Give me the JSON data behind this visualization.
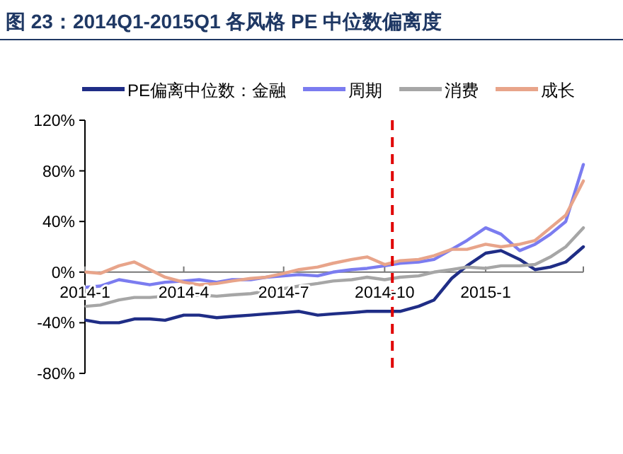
{
  "chart_data": {
    "type": "line",
    "title": "图 23：2014Q1-2015Q1 各风格 PE 中位数偏离度",
    "x": [
      "2014-01-02",
      "2014-01-15",
      "2014-02-01",
      "2014-02-15",
      "2014-03-01",
      "2014-03-15",
      "2014-04-01",
      "2014-04-15",
      "2014-05-01",
      "2014-05-15",
      "2014-06-01",
      "2014-06-15",
      "2014-07-01",
      "2014-07-15",
      "2014-08-01",
      "2014-08-15",
      "2014-09-01",
      "2014-09-15",
      "2014-10-01",
      "2014-10-15",
      "2014-11-01",
      "2014-11-15",
      "2014-12-01",
      "2014-12-15",
      "2015-01-01",
      "2015-01-15",
      "2015-02-01",
      "2015-02-15",
      "2015-03-01",
      "2015-03-15",
      "2015-03-31"
    ],
    "series": [
      {
        "name": "PE偏离中位数：金融",
        "color": "#1f2d86",
        "values": [
          -38,
          -40,
          -40,
          -37,
          -37,
          -38,
          -34,
          -34,
          -36,
          -35,
          -34,
          -33,
          -32,
          -31,
          -34,
          -33,
          -32,
          -31,
          -31,
          -31,
          -27,
          -22,
          -5,
          5,
          15,
          17,
          10,
          2,
          4,
          8,
          20
        ]
      },
      {
        "name": "周期",
        "color": "#7b7cf0",
        "values": [
          -12,
          -11,
          -6,
          -8,
          -10,
          -8,
          -7,
          -6,
          -8,
          -6,
          -6,
          -4,
          -3,
          -2,
          -3,
          0,
          2,
          3,
          5,
          7,
          8,
          10,
          18,
          25,
          35,
          30,
          17,
          22,
          30,
          40,
          85
        ]
      },
      {
        "name": "消费",
        "color": "#a6a6a6",
        "values": [
          -27,
          -26,
          -22,
          -20,
          -20,
          -19,
          -19,
          -18,
          -19,
          -18,
          -17,
          -15,
          -13,
          -11,
          -9,
          -7,
          -6,
          -4,
          -6,
          -4,
          -3,
          0,
          2,
          4,
          3,
          5,
          5,
          6,
          12,
          20,
          35
        ]
      },
      {
        "name": "成长",
        "color": "#e8a48a",
        "values": [
          0,
          -1,
          5,
          8,
          2,
          -4,
          -8,
          -10,
          -9,
          -7,
          -5,
          -4,
          -1,
          2,
          4,
          7,
          10,
          12,
          6,
          9,
          10,
          13,
          18,
          18,
          22,
          20,
          22,
          25,
          35,
          45,
          72
        ]
      }
    ],
    "xlim": [
      "2014-01-01",
      "2015-03-31"
    ],
    "xticks": [
      {
        "value": "2014-01-01",
        "label": "2014-1"
      },
      {
        "value": "2014-04-01",
        "label": "2014-4"
      },
      {
        "value": "2014-07-01",
        "label": "2014-7"
      },
      {
        "value": "2014-10-01",
        "label": "2014-10"
      },
      {
        "value": "2015-01-01",
        "label": "2015-1"
      }
    ],
    "ylim": [
      -80,
      120
    ],
    "yticks": [
      {
        "value": -80,
        "label": "-80%"
      },
      {
        "value": -40,
        "label": "-40%"
      },
      {
        "value": 0,
        "label": "0%"
      },
      {
        "value": 40,
        "label": "40%"
      },
      {
        "value": 80,
        "label": "80%"
      },
      {
        "value": 120,
        "label": "120%"
      }
    ],
    "ref_lines": [
      {
        "axis": "x",
        "value": "2014-10-08",
        "color": "#e00000",
        "line_style": "dashed"
      }
    ],
    "grid": false,
    "legend": "top"
  }
}
